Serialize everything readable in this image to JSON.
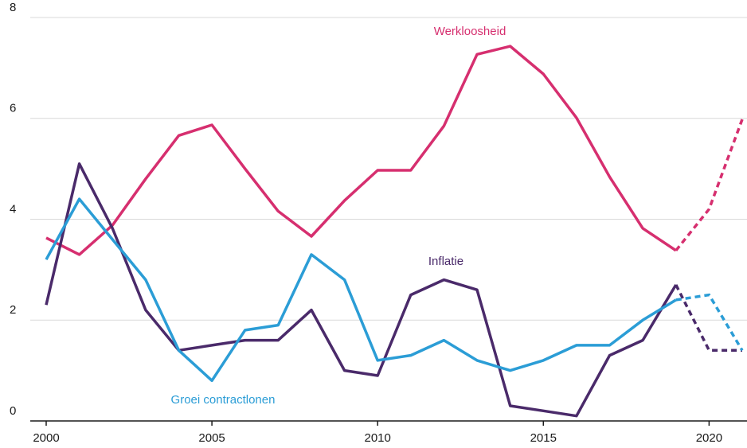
{
  "chart_data": {
    "type": "line",
    "x": [
      2000,
      2001,
      2002,
      2003,
      2004,
      2005,
      2006,
      2007,
      2008,
      2009,
      2010,
      2011,
      2012,
      2013,
      2014,
      2015,
      2016,
      2017,
      2018,
      2019,
      2020,
      2021
    ],
    "xlim": [
      2000,
      2021
    ],
    "xticks": [
      2000,
      2005,
      2010,
      2015,
      2020
    ],
    "ylim": [
      0,
      8
    ],
    "yticks": [
      0,
      2,
      4,
      6,
      8
    ],
    "grid": true,
    "dashed_from": 2019,
    "series": [
      {
        "name": "Werkloosheid",
        "color": "#d62f6f",
        "values": [
          3.63,
          3.3,
          3.88,
          4.8,
          5.66,
          5.87,
          5.0,
          4.16,
          3.66,
          4.37,
          4.97,
          4.97,
          5.85,
          7.27,
          7.43,
          6.88,
          6.01,
          4.84,
          3.82,
          3.38,
          4.2,
          5.98
        ]
      },
      {
        "name": "Inflatie",
        "color": "#4a2a6a",
        "values": [
          2.3,
          5.1,
          3.82,
          2.2,
          1.4,
          1.5,
          1.6,
          1.6,
          2.2,
          1.0,
          0.9,
          2.5,
          2.8,
          2.6,
          0.3,
          0.2,
          0.1,
          1.3,
          1.6,
          2.7,
          1.4,
          1.4
        ]
      },
      {
        "name": "Groei contractlonen",
        "color": "#2b9dd6",
        "values": [
          3.2,
          4.4,
          3.6,
          2.8,
          1.4,
          0.8,
          1.8,
          1.9,
          3.3,
          2.8,
          1.2,
          1.3,
          1.6,
          1.2,
          1.0,
          1.2,
          1.5,
          1.5,
          2.0,
          2.4,
          2.5,
          1.4
        ]
      }
    ]
  }
}
